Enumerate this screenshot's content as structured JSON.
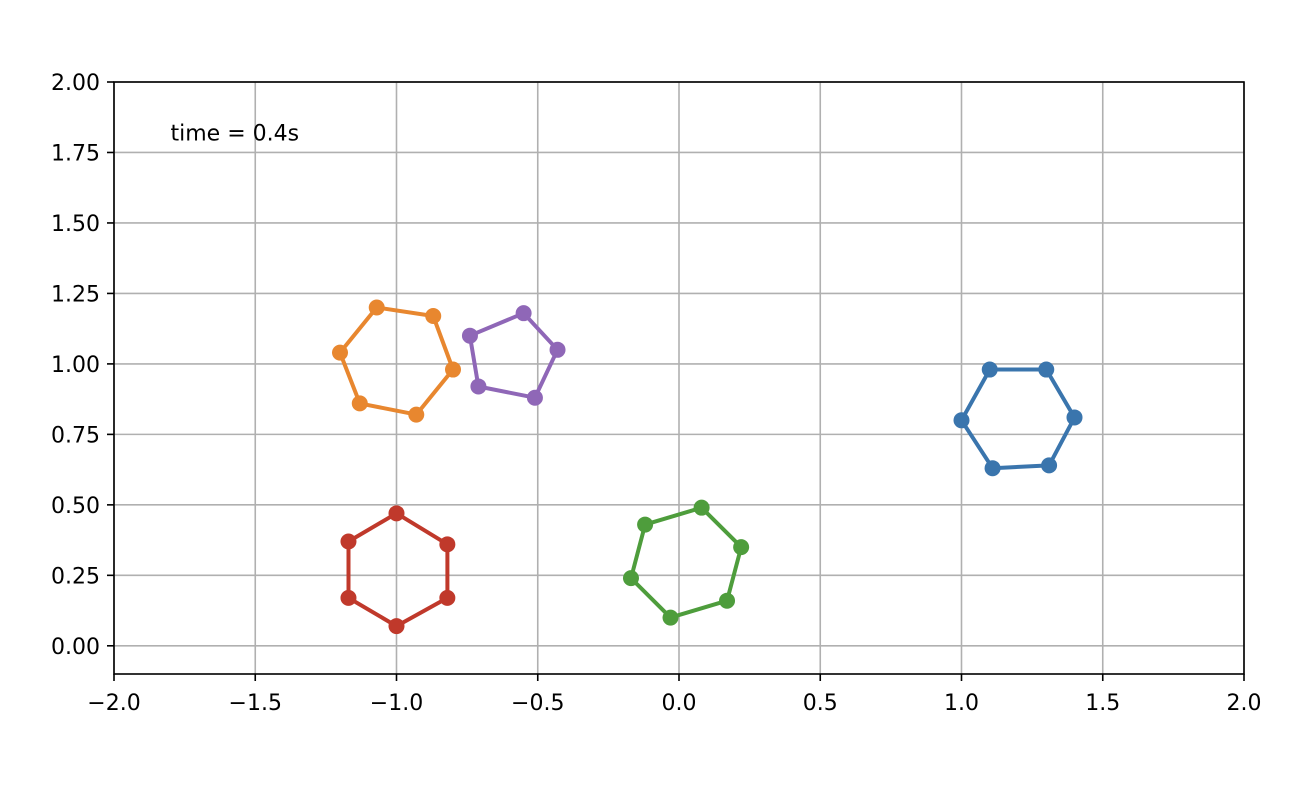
{
  "chart_data": {
    "type": "line",
    "title": "",
    "xlabel": "",
    "ylabel": "",
    "xlim": [
      -2.0,
      2.0
    ],
    "ylim": [
      -0.1,
      2.0
    ],
    "grid": true,
    "x_ticks": [
      "−2.0",
      "−1.5",
      "−1.0",
      "−0.5",
      "0.0",
      "0.5",
      "1.0",
      "1.5",
      "2.0"
    ],
    "x_tick_values": [
      -2.0,
      -1.5,
      -1.0,
      -0.5,
      0.0,
      0.5,
      1.0,
      1.5,
      2.0
    ],
    "y_ticks": [
      "0.00",
      "0.25",
      "0.50",
      "0.75",
      "1.00",
      "1.25",
      "1.50",
      "1.75",
      "2.00"
    ],
    "y_tick_values": [
      0.0,
      0.25,
      0.5,
      0.75,
      1.0,
      1.25,
      1.5,
      1.75,
      2.0
    ],
    "annotation": "time = 0.4s",
    "series": [
      {
        "color": "#3a75ad",
        "closed": true,
        "points": [
          [
            1.0,
            0.8
          ],
          [
            1.1,
            0.98
          ],
          [
            1.3,
            0.98
          ],
          [
            1.4,
            0.81
          ],
          [
            1.31,
            0.64
          ],
          [
            1.11,
            0.63
          ]
        ]
      },
      {
        "color": "#e8872f",
        "closed": true,
        "points": [
          [
            -1.2,
            1.04
          ],
          [
            -1.07,
            1.2
          ],
          [
            -0.87,
            1.17
          ],
          [
            -0.8,
            0.98
          ],
          [
            -0.93,
            0.82
          ],
          [
            -1.13,
            0.86
          ]
        ]
      },
      {
        "color": "#8f67b7",
        "closed": true,
        "points": [
          [
            -0.74,
            1.1
          ],
          [
            -0.55,
            1.18
          ],
          [
            -0.43,
            1.05
          ],
          [
            -0.51,
            0.88
          ],
          [
            -0.71,
            0.92
          ]
        ]
      },
      {
        "color": "#c0392b",
        "closed": true,
        "points": [
          [
            -1.0,
            0.47
          ],
          [
            -0.82,
            0.36
          ],
          [
            -0.82,
            0.17
          ],
          [
            -1.0,
            0.07
          ],
          [
            -1.17,
            0.17
          ],
          [
            -1.17,
            0.37
          ]
        ]
      },
      {
        "color": "#4e9d3c",
        "closed": true,
        "points": [
          [
            -0.12,
            0.43
          ],
          [
            0.08,
            0.49
          ],
          [
            0.22,
            0.35
          ],
          [
            0.17,
            0.16
          ],
          [
            -0.03,
            0.1
          ],
          [
            -0.17,
            0.24
          ]
        ]
      }
    ]
  }
}
